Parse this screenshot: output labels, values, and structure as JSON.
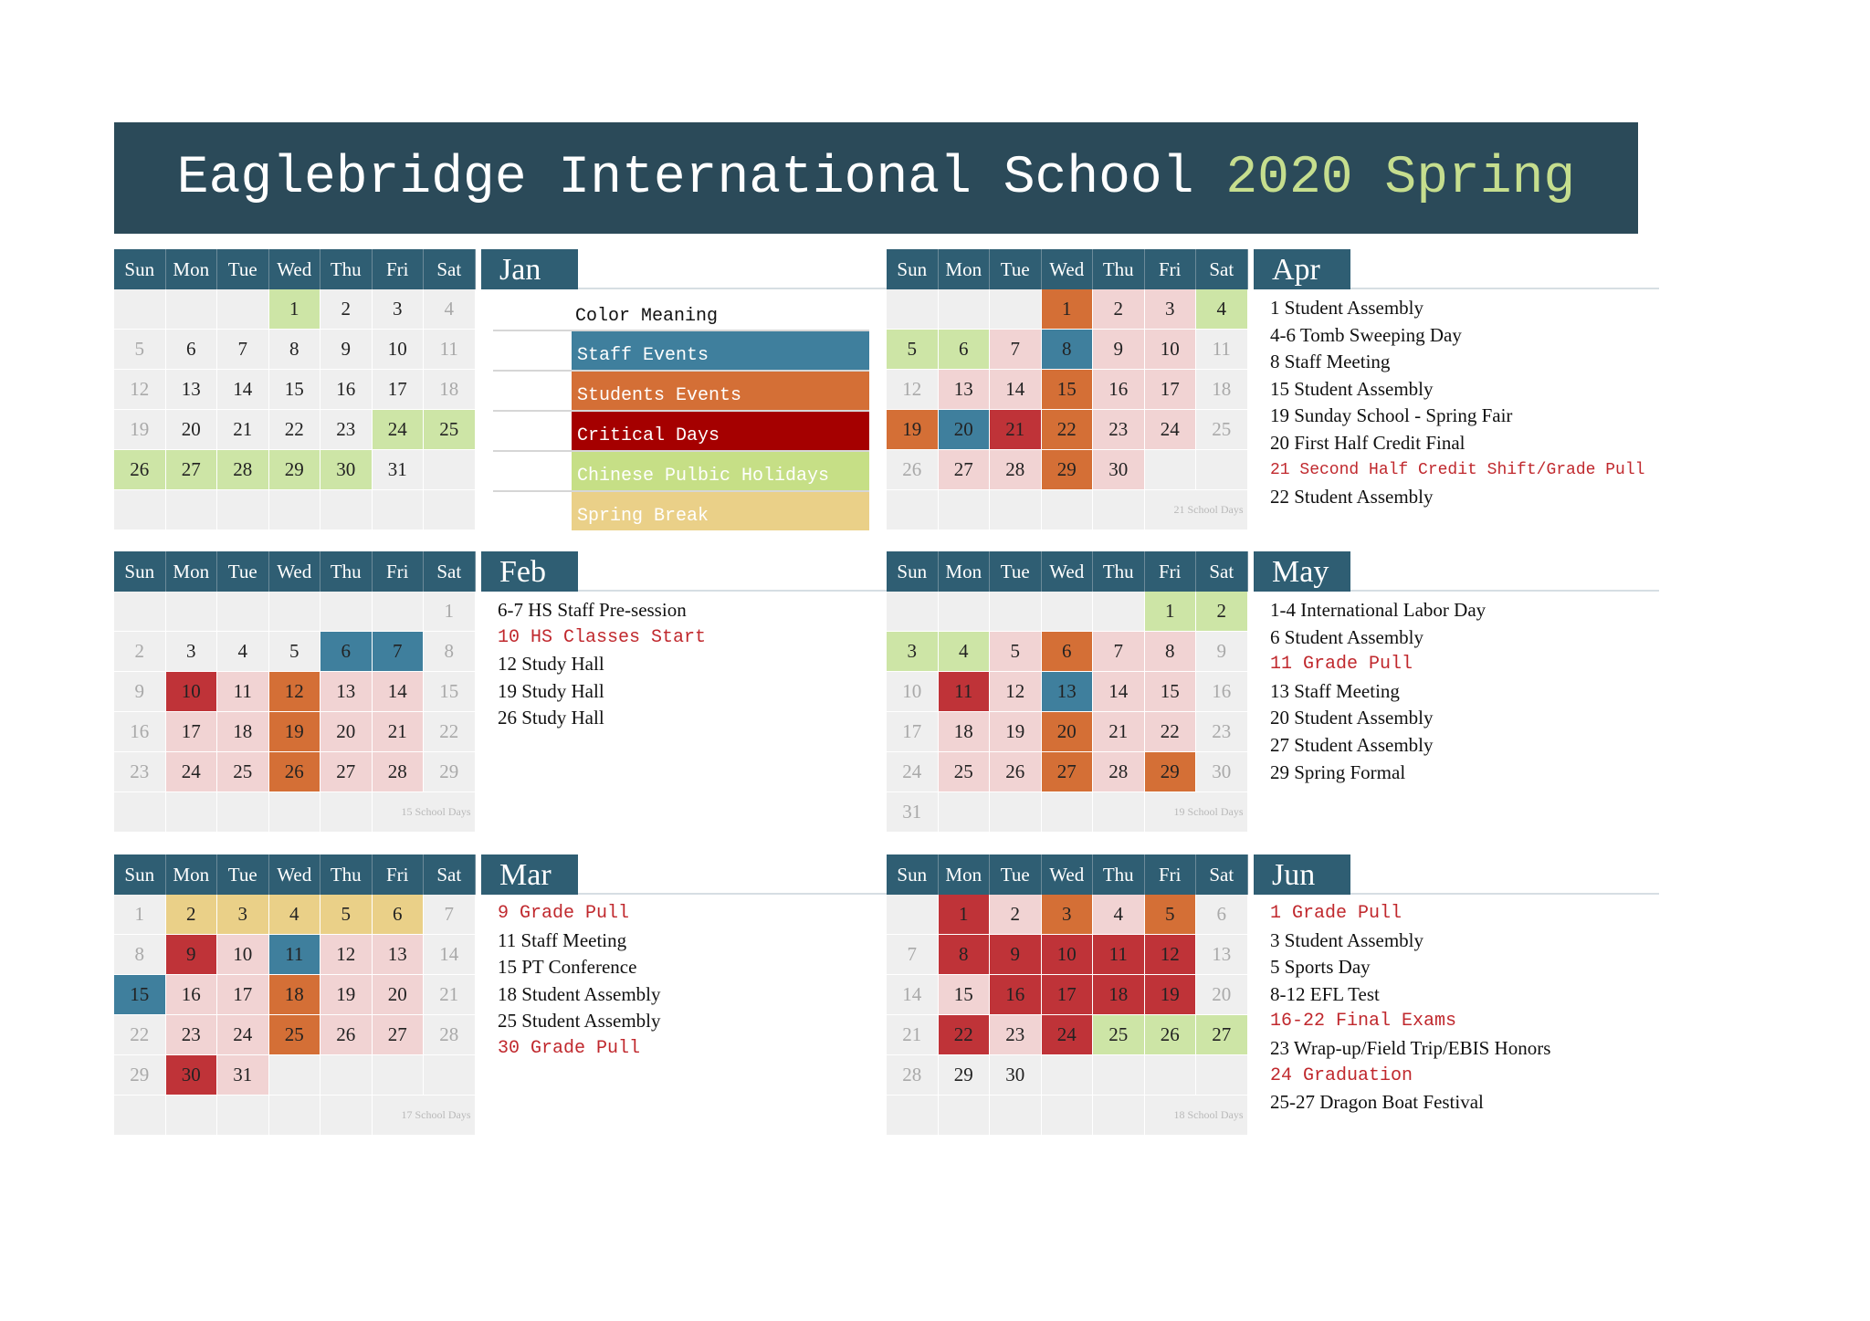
{
  "title": {
    "main": "Eaglebridge International School ",
    "accent": "2020 Spring"
  },
  "weekdays": [
    "Sun",
    "Mon",
    "Tue",
    "Wed",
    "Thu",
    "Fri",
    "Sat"
  ],
  "legend": {
    "title": "Color Meaning",
    "items": [
      {
        "label": "Staff Events",
        "color": "#3f7f9d"
      },
      {
        "label": "Students Events",
        "color": "#d46f36"
      },
      {
        "label": "Critical Days",
        "color": "#a50000"
      },
      {
        "label": "Chinese Pulbic Holidays",
        "color": "#c6df86"
      },
      {
        "label": "Spring Break",
        "color": "#ead088"
      }
    ]
  },
  "months": [
    {
      "id": "jan",
      "name": "Jan",
      "days": [
        [
          "",
          "",
          "",
          "1",
          "2",
          "3",
          "4"
        ],
        [
          "5",
          "6",
          "7",
          "8",
          "9",
          "10",
          "11"
        ],
        [
          "12",
          "13",
          "14",
          "15",
          "16",
          "17",
          "18"
        ],
        [
          "19",
          "20",
          "21",
          "22",
          "23",
          "24",
          "25"
        ],
        [
          "26",
          "27",
          "28",
          "29",
          "30",
          "31",
          ""
        ],
        [
          "",
          "",
          "",
          "",
          "",
          "",
          ""
        ]
      ],
      "colors": [
        [
          "",
          "",
          "",
          "green",
          "",
          "",
          "dim"
        ],
        [
          "dim",
          "",
          "",
          "",
          "",
          "",
          "dim"
        ],
        [
          "dim",
          "",
          "",
          "",
          "",
          "",
          "dim"
        ],
        [
          "dim",
          "",
          "",
          "",
          "",
          "green",
          "green"
        ],
        [
          "green",
          "green",
          "green",
          "green",
          "green",
          "",
          ""
        ],
        [
          "",
          "",
          "",
          "",
          "",
          "",
          ""
        ]
      ],
      "school_days": "",
      "events": []
    },
    {
      "id": "apr",
      "name": "Apr",
      "days": [
        [
          "",
          "",
          "",
          "1",
          "2",
          "3",
          "4"
        ],
        [
          "5",
          "6",
          "7",
          "8",
          "9",
          "10",
          "11"
        ],
        [
          "12",
          "13",
          "14",
          "15",
          "16",
          "17",
          "18"
        ],
        [
          "19",
          "20",
          "21",
          "22",
          "23",
          "24",
          "25"
        ],
        [
          "26",
          "27",
          "28",
          "29",
          "30",
          "",
          ""
        ],
        [
          "",
          "",
          "",
          "",
          "",
          "",
          ""
        ]
      ],
      "colors": [
        [
          "",
          "",
          "",
          "orange",
          "pink",
          "pink",
          "green"
        ],
        [
          "green",
          "green",
          "pink",
          "blue",
          "pink",
          "pink",
          "dim"
        ],
        [
          "dim",
          "pink",
          "pink",
          "orange",
          "pink",
          "pink",
          "dim"
        ],
        [
          "orange",
          "blue",
          "red",
          "orange",
          "pink",
          "pink",
          "dim"
        ],
        [
          "dim",
          "pink",
          "pink",
          "orange",
          "pink",
          "",
          ""
        ],
        [
          "",
          "",
          "",
          "",
          "",
          "",
          ""
        ]
      ],
      "school_days": "21 School Days",
      "events": [
        {
          "text": "1 Student Assembly",
          "style": "normal"
        },
        {
          "text": "4-6 Tomb Sweeping Day",
          "style": "normal"
        },
        {
          "text": "8 Staff Meeting",
          "style": "normal"
        },
        {
          "text": "15 Student Assembly",
          "style": "normal"
        },
        {
          "text": "19 Sunday School -  Spring Fair",
          "style": "normal"
        },
        {
          "text": "20 First Half Credit Final",
          "style": "normal"
        },
        {
          "text": "21 Second Half Credit Shift/Grade Pull",
          "style": "red-small"
        },
        {
          "text": "22 Student Assembly",
          "style": "normal"
        }
      ]
    },
    {
      "id": "feb",
      "name": "Feb",
      "days": [
        [
          "",
          "",
          "",
          "",
          "",
          "",
          "1"
        ],
        [
          "2",
          "3",
          "4",
          "5",
          "6",
          "7",
          "8"
        ],
        [
          "9",
          "10",
          "11",
          "12",
          "13",
          "14",
          "15"
        ],
        [
          "16",
          "17",
          "18",
          "19",
          "20",
          "21",
          "22"
        ],
        [
          "23",
          "24",
          "25",
          "26",
          "27",
          "28",
          "29"
        ],
        [
          "",
          "",
          "",
          "",
          "",
          "",
          ""
        ]
      ],
      "colors": [
        [
          "",
          "",
          "",
          "",
          "",
          "",
          "dim"
        ],
        [
          "dim",
          "",
          "",
          "",
          "blue",
          "blue",
          "dim"
        ],
        [
          "dim",
          "red",
          "pink",
          "orange",
          "pink",
          "pink",
          "dim"
        ],
        [
          "dim",
          "pink",
          "pink",
          "orange",
          "pink",
          "pink",
          "dim"
        ],
        [
          "dim",
          "pink",
          "pink",
          "orange",
          "pink",
          "pink",
          "dim"
        ],
        [
          "",
          "",
          "",
          "",
          "",
          "",
          ""
        ]
      ],
      "school_days": "15 School Days",
      "events": [
        {
          "text": "6-7 HS Staff Pre-session",
          "style": "normal"
        },
        {
          "text": "10 HS Classes Start",
          "style": "red"
        },
        {
          "text": "12 Study Hall",
          "style": "normal"
        },
        {
          "text": "19 Study Hall",
          "style": "normal"
        },
        {
          "text": "26 Study Hall",
          "style": "normal"
        }
      ]
    },
    {
      "id": "may",
      "name": "May",
      "days": [
        [
          "",
          "",
          "",
          "",
          "",
          "1",
          "2"
        ],
        [
          "3",
          "4",
          "5",
          "6",
          "7",
          "8",
          "9"
        ],
        [
          "10",
          "11",
          "12",
          "13",
          "14",
          "15",
          "16"
        ],
        [
          "17",
          "18",
          "19",
          "20",
          "21",
          "22",
          "23"
        ],
        [
          "24",
          "25",
          "26",
          "27",
          "28",
          "29",
          "30"
        ],
        [
          "31",
          "",
          "",
          "",
          "",
          "",
          ""
        ]
      ],
      "colors": [
        [
          "",
          "",
          "",
          "",
          "",
          "green",
          "green"
        ],
        [
          "green",
          "green",
          "pink",
          "orange",
          "pink",
          "pink",
          "dim"
        ],
        [
          "dim",
          "red",
          "pink",
          "blue",
          "pink",
          "pink",
          "dim"
        ],
        [
          "dim",
          "pink",
          "pink",
          "orange",
          "pink",
          "pink",
          "dim"
        ],
        [
          "dim",
          "pink",
          "pink",
          "orange",
          "pink",
          "orange",
          "dim"
        ],
        [
          "dim",
          "",
          "",
          "",
          "",
          "",
          ""
        ]
      ],
      "school_days": "19 School Days",
      "events": [
        {
          "text": "1-4 International Labor Day",
          "style": "normal"
        },
        {
          "text": "6 Student Assembly",
          "style": "normal"
        },
        {
          "text": "11 Grade Pull",
          "style": "red"
        },
        {
          "text": "13 Staff Meeting",
          "style": "normal"
        },
        {
          "text": "20 Student Assembly",
          "style": "normal"
        },
        {
          "text": "27 Student Assembly",
          "style": "normal"
        },
        {
          "text": "29 Spring Formal",
          "style": "normal"
        }
      ]
    },
    {
      "id": "mar",
      "name": "Mar",
      "days": [
        [
          "1",
          "2",
          "3",
          "4",
          "5",
          "6",
          "7"
        ],
        [
          "8",
          "9",
          "10",
          "11",
          "12",
          "13",
          "14"
        ],
        [
          "15",
          "16",
          "17",
          "18",
          "19",
          "20",
          "21"
        ],
        [
          "22",
          "23",
          "24",
          "25",
          "26",
          "27",
          "28"
        ],
        [
          "29",
          "30",
          "31",
          "",
          "",
          "",
          ""
        ],
        [
          "",
          "",
          "",
          "",
          "",
          "",
          ""
        ]
      ],
      "colors": [
        [
          "dim",
          "yellow",
          "yellow",
          "yellow",
          "yellow",
          "yellow",
          "dim"
        ],
        [
          "dim",
          "red",
          "pink",
          "blue",
          "pink",
          "pink",
          "dim"
        ],
        [
          "blue",
          "pink",
          "pink",
          "orange",
          "pink",
          "pink",
          "dim"
        ],
        [
          "dim",
          "pink",
          "pink",
          "orange",
          "pink",
          "pink",
          "dim"
        ],
        [
          "dim",
          "red",
          "pink",
          "",
          "",
          "",
          ""
        ],
        [
          "",
          "",
          "",
          "",
          "",
          "",
          ""
        ]
      ],
      "school_days": "17 School Days",
      "events": [
        {
          "text": "9 Grade Pull",
          "style": "red"
        },
        {
          "text": "11 Staff Meeting",
          "style": "normal"
        },
        {
          "text": "15 PT Conference",
          "style": "normal"
        },
        {
          "text": "18 Student Assembly",
          "style": "normal"
        },
        {
          "text": "25 Student Assembly",
          "style": "normal"
        },
        {
          "text": "30 Grade Pull",
          "style": "red"
        }
      ]
    },
    {
      "id": "jun",
      "name": "Jun",
      "days": [
        [
          "",
          "1",
          "2",
          "3",
          "4",
          "5",
          "6"
        ],
        [
          "7",
          "8",
          "9",
          "10",
          "11",
          "12",
          "13"
        ],
        [
          "14",
          "15",
          "16",
          "17",
          "18",
          "19",
          "20"
        ],
        [
          "21",
          "22",
          "23",
          "24",
          "25",
          "26",
          "27"
        ],
        [
          "28",
          "29",
          "30",
          "",
          "",
          "",
          ""
        ],
        [
          "",
          "",
          "",
          "",
          "",
          "",
          ""
        ]
      ],
      "colors": [
        [
          "",
          "red",
          "pink",
          "orange",
          "pink",
          "orange",
          "dim"
        ],
        [
          "dim",
          "red",
          "red",
          "red",
          "red",
          "red",
          "dim"
        ],
        [
          "dim",
          "pink",
          "red",
          "red",
          "red",
          "red",
          "dim"
        ],
        [
          "dim",
          "red",
          "pink",
          "red",
          "green",
          "green",
          "green"
        ],
        [
          "dim",
          "",
          "",
          "",
          "",
          "",
          ""
        ],
        [
          "",
          "",
          "",
          "",
          "",
          "",
          ""
        ]
      ],
      "school_days": "18 School Days",
      "events": [
        {
          "text": "1 Grade Pull",
          "style": "red"
        },
        {
          "text": "3 Student Assembly",
          "style": "normal"
        },
        {
          "text": "5 Sports Day",
          "style": "normal"
        },
        {
          "text": "8-12 EFL Test",
          "style": "normal"
        },
        {
          "text": "16-22 Final Exams",
          "style": "red"
        },
        {
          "text": "23 Wrap-up/Field Trip/EBIS Honors",
          "style": "normal"
        },
        {
          "text": "24 Graduation",
          "style": "red"
        },
        {
          "text": "25-27 Dragon Boat Festival",
          "style": "normal"
        }
      ]
    }
  ]
}
